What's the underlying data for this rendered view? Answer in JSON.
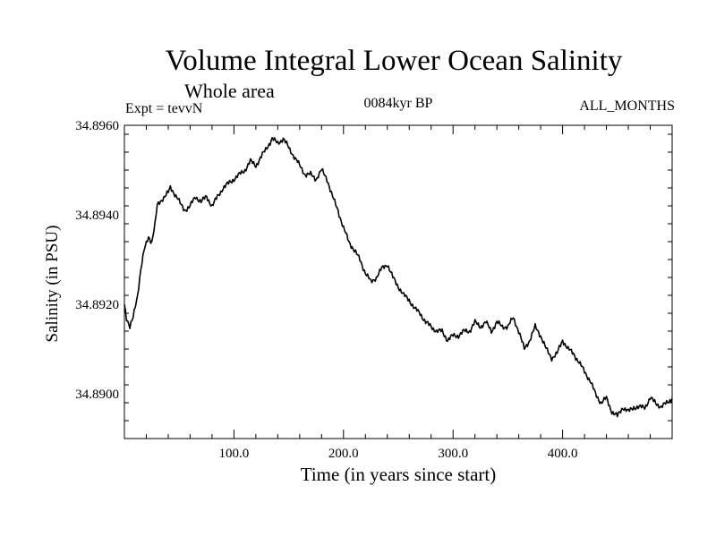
{
  "chart_data": {
    "type": "line",
    "title": "Volume Integral Lower Ocean Salinity",
    "subtitle": "Whole area",
    "experiment": "Expt = tevvN",
    "period": "0084kyr BP",
    "months": "ALL_MONTHS",
    "xlabel": "Time (in years since start)",
    "ylabel": "Salinity (in PSU)",
    "xlim": [
      0,
      500
    ],
    "ylim": [
      34.889,
      34.896
    ],
    "x_ticks": [
      100,
      200,
      300,
      400
    ],
    "x_tick_labels": [
      "100.0",
      "200.0",
      "300.0",
      "400.0"
    ],
    "y_ticks": [
      34.89,
      34.892,
      34.894,
      34.896
    ],
    "y_tick_labels": [
      "34.8900",
      "34.8920",
      "34.8940",
      "34.8960"
    ],
    "grid": false,
    "series": [
      {
        "name": "salinity",
        "x": [
          0,
          2,
          5,
          8,
          12,
          15,
          18,
          22,
          25,
          28,
          30,
          33,
          36,
          40,
          42,
          45,
          48,
          52,
          55,
          60,
          65,
          70,
          75,
          80,
          85,
          90,
          95,
          100,
          105,
          110,
          115,
          120,
          125,
          130,
          135,
          140,
          145,
          150,
          155,
          160,
          165,
          170,
          175,
          180,
          185,
          190,
          195,
          200,
          205,
          210,
          215,
          220,
          225,
          230,
          235,
          240,
          245,
          250,
          255,
          260,
          265,
          270,
          275,
          280,
          285,
          290,
          295,
          300,
          305,
          310,
          315,
          320,
          325,
          330,
          335,
          340,
          345,
          350,
          355,
          360,
          365,
          370,
          375,
          380,
          385,
          390,
          395,
          400,
          405,
          410,
          415,
          420,
          425,
          430,
          435,
          440,
          445,
          450,
          455,
          460,
          465,
          470,
          475,
          480,
          485,
          490,
          495,
          500
        ],
        "values": [
          34.892,
          34.8917,
          34.8915,
          34.8917,
          34.8922,
          34.8928,
          34.8932,
          34.8935,
          34.8934,
          34.8938,
          34.8942,
          34.8943,
          34.8944,
          34.8945,
          34.8946,
          34.8945,
          34.8944,
          34.8942,
          34.8941,
          34.8942,
          34.8944,
          34.8943,
          34.8944,
          34.8942,
          34.8944,
          34.8946,
          34.8947,
          34.8948,
          34.8949,
          34.895,
          34.8952,
          34.8951,
          34.8953,
          34.8955,
          34.8957,
          34.8956,
          34.8957,
          34.8955,
          34.8953,
          34.8951,
          34.8949,
          34.8949,
          34.8948,
          34.895,
          34.8948,
          34.8944,
          34.8941,
          34.8937,
          34.8934,
          34.8932,
          34.893,
          34.8927,
          34.8925,
          34.8926,
          34.8928,
          34.8929,
          34.8926,
          34.8924,
          34.8922,
          34.8921,
          34.8919,
          34.8918,
          34.8916,
          34.8915,
          34.8914,
          34.8914,
          34.8912,
          34.8913,
          34.8913,
          34.8914,
          34.8914,
          34.8916,
          34.8915,
          34.8916,
          34.8914,
          34.8916,
          34.8915,
          34.8915,
          34.8917,
          34.8914,
          34.891,
          34.8912,
          34.8915,
          34.8913,
          34.891,
          34.8908,
          34.8909,
          34.8912,
          34.891,
          34.8909,
          34.8907,
          34.8905,
          34.8903,
          34.89,
          34.8898,
          34.8899,
          34.8896,
          34.8895,
          34.8897,
          34.8896,
          34.8897,
          34.8897,
          34.8897,
          34.8899,
          34.8898,
          34.8897,
          34.8898,
          34.8899
        ]
      }
    ]
  }
}
